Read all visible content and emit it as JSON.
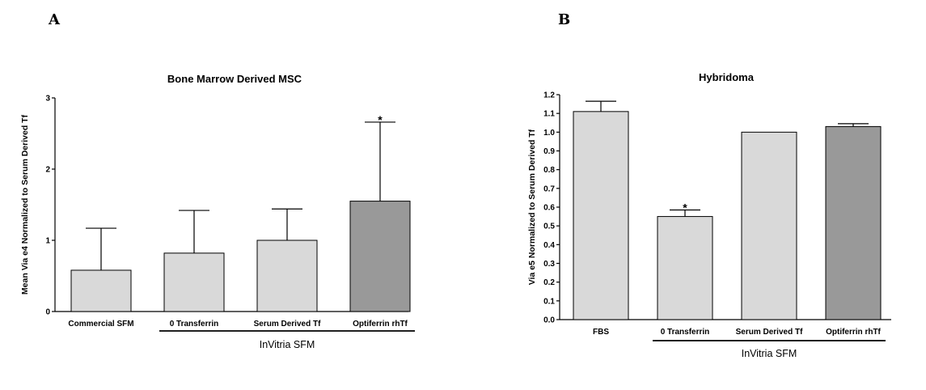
{
  "panels": [
    {
      "letter": "A"
    },
    {
      "letter": "B"
    }
  ],
  "chart_data": [
    {
      "type": "bar",
      "title": "Bone Marrow Derived MSC",
      "ylabel": "Mean Via e4 Normalized to Serum Derived Tf",
      "xlabel": "",
      "categories": [
        "Commercial SFM",
        "0 Transferrin",
        "Serum Derived Tf",
        "Optiferrin rhTf"
      ],
      "values": [
        0.58,
        0.82,
        1.0,
        1.55
      ],
      "errors": [
        0.59,
        0.6,
        0.44,
        1.11
      ],
      "colors": [
        "#d9d9d9",
        "#d9d9d9",
        "#d9d9d9",
        "#999999"
      ],
      "significance": [
        "",
        "",
        "",
        "*"
      ],
      "ylim": [
        0,
        3
      ],
      "yticks": [
        "0",
        "1",
        "2",
        "3"
      ],
      "group_label": "InVitria SFM",
      "group_span": [
        1,
        3
      ]
    },
    {
      "type": "bar",
      "title": "Hybridoma",
      "ylabel": "Via e5 Normalized to Serum Derived Tf",
      "xlabel": "",
      "categories": [
        "FBS",
        "0 Transferrin",
        "Serum Derived Tf",
        "Optiferrin rhTf"
      ],
      "values": [
        1.11,
        0.55,
        1.0,
        1.03
      ],
      "errors": [
        0.055,
        0.035,
        0,
        0.015
      ],
      "colors": [
        "#d9d9d9",
        "#d9d9d9",
        "#d9d9d9",
        "#999999"
      ],
      "significance": [
        "",
        "*",
        "",
        ""
      ],
      "ylim": [
        0,
        1.2
      ],
      "yticks": [
        "0.0",
        "0.1",
        "0.2",
        "0.3",
        "0.4",
        "0.5",
        "0.6",
        "0.7",
        "0.8",
        "0.9",
        "1.0",
        "1.1",
        "1.2"
      ],
      "group_label": "InVitria SFM",
      "group_span": [
        1,
        3
      ]
    }
  ]
}
